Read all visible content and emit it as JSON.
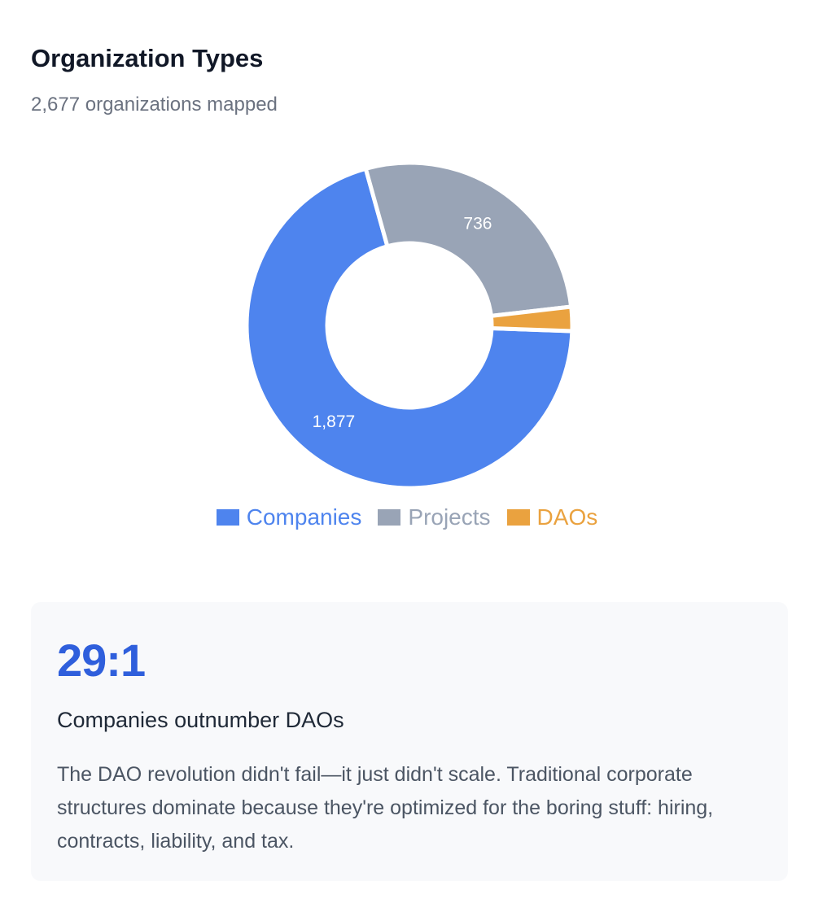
{
  "header": {
    "title": "Organization Types",
    "subtitle": "2,677 organizations mapped"
  },
  "chart_data": {
    "type": "pie",
    "variant": "donut",
    "total": 2677,
    "slices": [
      {
        "name": "Companies",
        "value": 1877,
        "label": "1,877",
        "color": "#4e84ee"
      },
      {
        "name": "Projects",
        "value": 736,
        "label": "736",
        "color": "#99a4b6"
      },
      {
        "name": "DAOs",
        "value": 64,
        "label": "",
        "color": "#eaa23f"
      }
    ],
    "legend": {
      "position": "bottom",
      "items": [
        {
          "label": "Companies",
          "color": "#4e84ee"
        },
        {
          "label": "Projects",
          "color": "#99a4b6"
        },
        {
          "label": "DAOs",
          "color": "#eaa23f"
        }
      ]
    }
  },
  "insight": {
    "ratio": "29:1",
    "heading": "Companies outnumber DAOs",
    "body": "The DAO revolution didn't fail—it just didn't scale. Traditional corporate structures dominate because they're optimized for the boring stuff: hiring, contracts, liability, and tax."
  }
}
